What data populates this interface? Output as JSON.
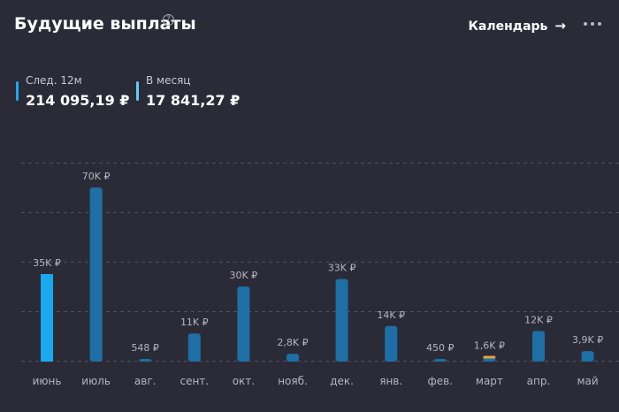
{
  "header": {
    "title": "Будущие выплаты",
    "help_icon": "question-circle-icon",
    "calendar_label": "Календарь",
    "calendar_arrow": "→",
    "more_icon": "more-dots-icon"
  },
  "stats": [
    {
      "label": "След. 12м",
      "value": "214 095,19 ₽",
      "color": "#1aa8ef"
    },
    {
      "label": "В месяц",
      "value": "17 841,27 ₽",
      "color": "#5cd0f5"
    }
  ],
  "colors": {
    "background": "#2b2b38",
    "bar_current": "#1aa8ef",
    "bar_default": "#1d6fa5",
    "bar_accent": "#e3a53a",
    "gridline": "#52525f"
  },
  "chart_data": {
    "type": "bar",
    "title": "",
    "xlabel": "",
    "ylabel": "",
    "ylim": [
      0,
      80000
    ],
    "grid": true,
    "categories": [
      "июнь",
      "июль",
      "авг.",
      "сент.",
      "окт.",
      "нояб.",
      "дек.",
      "янв.",
      "фев.",
      "март",
      "апр.",
      "май"
    ],
    "values": [
      35000,
      70000,
      548,
      11000,
      30000,
      2800,
      33000,
      14000,
      450,
      1600,
      12000,
      3900
    ],
    "data_labels": [
      "35K ₽",
      "70K ₽",
      "548 ₽",
      "11K ₽",
      "30K ₽",
      "2,8K ₽",
      "33K ₽",
      "14K ₽",
      "450 ₽",
      "1,6K ₽",
      "12K ₽",
      "3,9K ₽"
    ],
    "highlight_index": 0,
    "accent_index": 9
  }
}
